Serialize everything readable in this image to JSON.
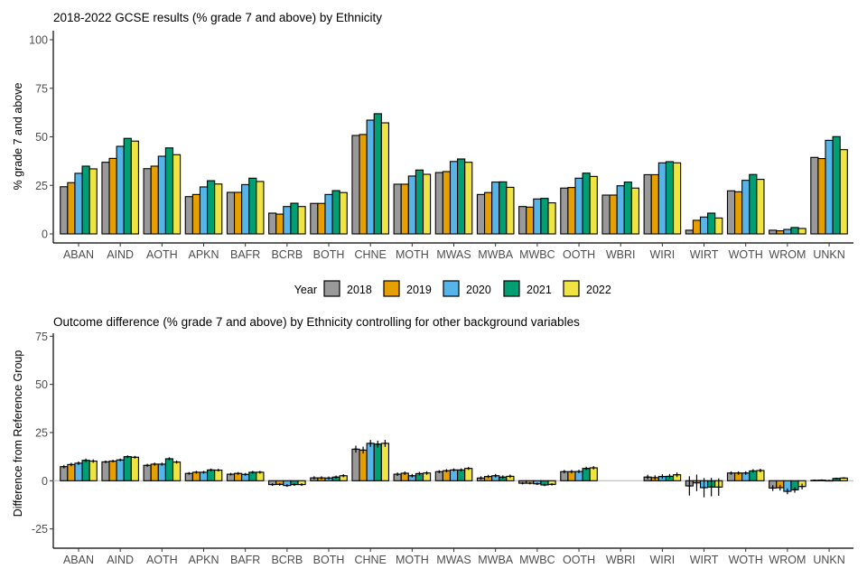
{
  "chart_data": [
    {
      "type": "bar",
      "title": "2018-2022 GCSE results (% grade 7 and above) by Ethnicity",
      "xlabel": "",
      "ylabel": "% grade 7 and above",
      "ylim": [
        0,
        100
      ],
      "yticks": [
        0,
        25,
        50,
        75,
        100
      ],
      "grid": false,
      "categories": [
        "ABAN",
        "AIND",
        "AOTH",
        "APKN",
        "BAFR",
        "BCRB",
        "BOTH",
        "CHNE",
        "MOTH",
        "MWAS",
        "MWBA",
        "MWBC",
        "OOTH",
        "WBRI",
        "WIRI",
        "WIRT",
        "WOTH",
        "WROM",
        "UNKN"
      ],
      "series": [
        {
          "name": "2018",
          "color": "#999999",
          "values": [
            24.3,
            36.9,
            33.6,
            19.2,
            21.4,
            10.7,
            15.7,
            50.7,
            25.6,
            31.6,
            20.3,
            14.1,
            23.6,
            20.0,
            30.5,
            1.9,
            22.2,
            1.9,
            39.4
          ]
        },
        {
          "name": "2019",
          "color": "#E69F00",
          "values": [
            26.4,
            38.9,
            34.9,
            20.3,
            21.4,
            10.2,
            15.7,
            51.2,
            25.6,
            32.1,
            21.3,
            13.8,
            23.9,
            20.0,
            30.5,
            7.0,
            21.7,
            1.6,
            38.8
          ]
        },
        {
          "name": "2020",
          "color": "#56B4E9",
          "values": [
            31.2,
            45.1,
            40.0,
            24.2,
            25.4,
            14.1,
            20.3,
            58.6,
            29.8,
            37.3,
            26.7,
            18.0,
            28.7,
            24.8,
            36.6,
            8.7,
            27.6,
            2.3,
            48.2
          ]
        },
        {
          "name": "2021",
          "color": "#009E73",
          "values": [
            34.9,
            49.2,
            44.3,
            27.4,
            28.7,
            15.8,
            22.3,
            61.9,
            32.9,
            38.6,
            26.8,
            18.3,
            31.3,
            26.7,
            37.2,
            10.7,
            30.6,
            3.3,
            50.1
          ]
        },
        {
          "name": "2022",
          "color": "#F0E442",
          "values": [
            33.5,
            47.8,
            40.8,
            25.7,
            27.0,
            14.1,
            21.3,
            57.2,
            30.7,
            36.9,
            24.0,
            16.0,
            29.6,
            23.6,
            36.6,
            8.2,
            28.1,
            2.8,
            43.4
          ]
        }
      ]
    },
    {
      "type": "bar",
      "title": "Outcome difference (% grade 7 and above) by Ethnicity controlling for other background variables",
      "xlabel": "",
      "ylabel": "Difference from Reference Group",
      "ylim": [
        -35,
        75
      ],
      "yticks": [
        -25,
        0,
        25,
        50,
        75
      ],
      "grid": false,
      "reference_line": 0,
      "error_bars": true,
      "categories": [
        "ABAN",
        "AIND",
        "AOTH",
        "APKN",
        "BAFR",
        "BCRB",
        "BOTH",
        "CHNE",
        "MOTH",
        "MWAS",
        "MWBA",
        "MWBC",
        "OOTH",
        "WBRI",
        "WIRI",
        "WIRT",
        "WOTH",
        "WROM",
        "UNKN"
      ],
      "series": [
        {
          "name": "2018",
          "color": "#999999",
          "values": [
            7.3,
            9.8,
            8.0,
            3.8,
            3.4,
            -2.0,
            1.5,
            16.4,
            3.4,
            4.7,
            1.4,
            -1.3,
            4.7,
            null,
            1.9,
            -2.7,
            4.0,
            -3.8,
            0.2
          ],
          "error": [
            0.9,
            0.7,
            0.8,
            0.7,
            0.7,
            0.7,
            0.8,
            1.8,
            0.9,
            0.8,
            0.9,
            0.6,
            0.9,
            null,
            1.2,
            5.0,
            0.9,
            1.5,
            0.4
          ]
        },
        {
          "name": "2019",
          "color": "#E69F00",
          "values": [
            8.4,
            10.2,
            8.6,
            4.4,
            3.8,
            -1.9,
            1.5,
            15.9,
            3.9,
            5.2,
            2.2,
            -1.3,
            4.7,
            null,
            1.6,
            -1.1,
            4.0,
            -3.6,
            0.3
          ],
          "error": [
            0.9,
            0.7,
            0.8,
            0.7,
            0.7,
            0.7,
            0.8,
            1.8,
            0.9,
            0.8,
            0.9,
            0.6,
            0.9,
            null,
            1.2,
            4.3,
            0.9,
            1.5,
            0.4
          ]
        },
        {
          "name": "2020",
          "color": "#56B4E9",
          "values": [
            9.1,
            10.8,
            8.6,
            4.4,
            3.3,
            -2.5,
            1.4,
            19.4,
            2.6,
            5.6,
            2.6,
            -1.6,
            4.8,
            null,
            2.2,
            -3.6,
            4.0,
            -5.5,
            0.1
          ],
          "error": [
            0.9,
            0.7,
            0.8,
            0.7,
            0.7,
            0.7,
            0.8,
            1.8,
            0.9,
            0.8,
            0.9,
            0.6,
            0.9,
            null,
            1.2,
            5.0,
            0.9,
            1.5,
            0.4
          ]
        },
        {
          "name": "2021",
          "color": "#009E73",
          "values": [
            10.6,
            12.5,
            11.4,
            5.6,
            4.4,
            -2.0,
            1.9,
            19.0,
            3.7,
            5.6,
            1.9,
            -2.2,
            6.4,
            null,
            2.3,
            -3.3,
            5.1,
            -4.7,
            1.2
          ],
          "error": [
            0.9,
            0.7,
            0.8,
            0.7,
            0.7,
            0.7,
            0.8,
            1.8,
            0.9,
            0.8,
            0.9,
            0.6,
            0.9,
            null,
            1.2,
            4.8,
            0.9,
            1.5,
            0.4
          ]
        },
        {
          "name": "2022",
          "color": "#F0E442",
          "values": [
            10.2,
            12.2,
            9.7,
            5.5,
            4.4,
            -2.0,
            2.6,
            19.4,
            4.0,
            6.4,
            2.3,
            -1.9,
            6.7,
            null,
            3.1,
            -3.3,
            5.3,
            -3.0,
            1.4
          ],
          "error": [
            0.9,
            0.7,
            0.8,
            0.7,
            0.7,
            0.7,
            0.8,
            1.8,
            0.9,
            0.8,
            0.9,
            0.6,
            0.9,
            null,
            1.2,
            4.5,
            0.9,
            1.5,
            0.4
          ]
        }
      ]
    }
  ],
  "legend": {
    "title": "Year",
    "placement": "between-charts-center",
    "entries": [
      {
        "label": "2018",
        "color": "#999999"
      },
      {
        "label": "2019",
        "color": "#E69F00"
      },
      {
        "label": "2020",
        "color": "#56B4E9"
      },
      {
        "label": "2021",
        "color": "#009E73"
      },
      {
        "label": "2022",
        "color": "#F0E442"
      }
    ]
  }
}
